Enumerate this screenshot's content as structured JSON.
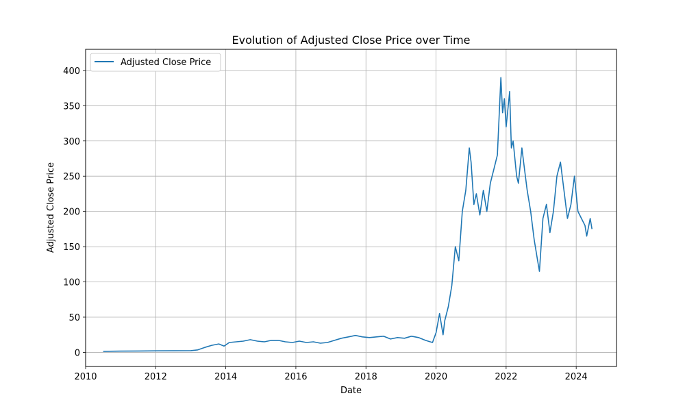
{
  "chart_data": {
    "type": "line",
    "title": "Evolution of Adjusted Close Price over Time",
    "xlabel": "Date",
    "ylabel": "Adjusted Close Price",
    "xlim": [
      2010.0,
      2025.15
    ],
    "ylim": [
      -20,
      430
    ],
    "x_ticks": [
      2010,
      2012,
      2014,
      2016,
      2018,
      2020,
      2022,
      2024
    ],
    "y_ticks": [
      0,
      50,
      100,
      150,
      200,
      250,
      300,
      350,
      400
    ],
    "grid": true,
    "legend": {
      "position": "top-left",
      "entries": [
        "Adjusted Close Price"
      ]
    },
    "series": [
      {
        "name": "Adjusted Close Price",
        "color": "#1f77b4",
        "x": [
          2010.5,
          2011.0,
          2011.5,
          2012.0,
          2012.5,
          2013.0,
          2013.2,
          2013.4,
          2013.6,
          2013.8,
          2013.95,
          2014.1,
          2014.3,
          2014.5,
          2014.7,
          2014.9,
          2015.1,
          2015.3,
          2015.5,
          2015.7,
          2015.9,
          2016.1,
          2016.3,
          2016.5,
          2016.7,
          2016.9,
          2017.1,
          2017.3,
          2017.5,
          2017.7,
          2017.9,
          2018.1,
          2018.3,
          2018.5,
          2018.7,
          2018.9,
          2019.1,
          2019.3,
          2019.5,
          2019.7,
          2019.9,
          2020.0,
          2020.1,
          2020.2,
          2020.25,
          2020.35,
          2020.45,
          2020.55,
          2020.65,
          2020.75,
          2020.85,
          2020.95,
          2021.0,
          2021.08,
          2021.15,
          2021.25,
          2021.35,
          2021.45,
          2021.55,
          2021.65,
          2021.75,
          2021.85,
          2021.9,
          2021.95,
          2022.0,
          2022.1,
          2022.15,
          2022.2,
          2022.3,
          2022.35,
          2022.45,
          2022.5,
          2022.6,
          2022.7,
          2022.8,
          2022.9,
          2022.95,
          2023.05,
          2023.15,
          2023.25,
          2023.35,
          2023.45,
          2023.55,
          2023.65,
          2023.75,
          2023.85,
          2023.95,
          2024.05,
          2024.15,
          2024.25,
          2024.3,
          2024.4,
          2024.45
        ],
        "y": [
          1.5,
          1.8,
          2.0,
          2.2,
          2.3,
          2.5,
          3.5,
          7,
          10,
          12,
          9,
          14,
          15,
          16,
          18,
          16,
          15,
          17,
          17,
          15,
          14,
          16,
          14,
          15,
          13,
          14,
          17,
          20,
          22,
          24,
          22,
          21,
          22,
          23,
          19,
          21,
          20,
          23,
          21,
          17,
          14,
          28,
          55,
          25,
          45,
          65,
          95,
          150,
          130,
          200,
          230,
          290,
          270,
          210,
          225,
          195,
          230,
          200,
          240,
          260,
          280,
          390,
          340,
          360,
          320,
          370,
          290,
          300,
          250,
          240,
          290,
          270,
          230,
          200,
          160,
          130,
          115,
          190,
          210,
          170,
          200,
          250,
          270,
          230,
          190,
          210,
          250,
          200,
          190,
          180,
          165,
          190,
          175
        ]
      }
    ]
  }
}
